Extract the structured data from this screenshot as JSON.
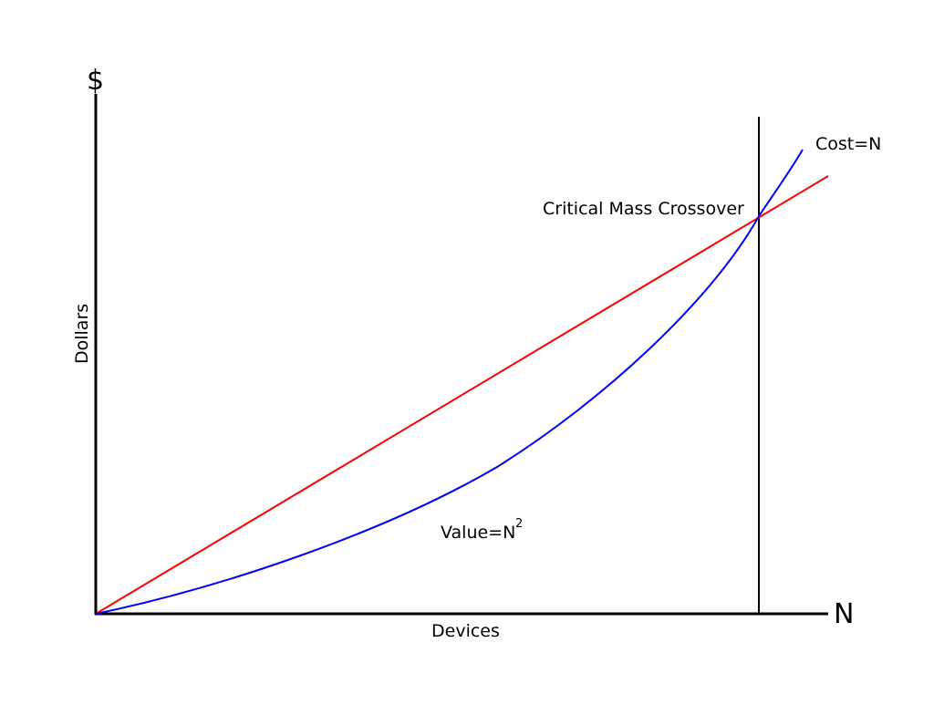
{
  "diagram": {
    "y_axis_symbol": "$",
    "x_axis_symbol": "N",
    "y_axis_label": "Dollars",
    "x_axis_label": "Devices",
    "crossover_label": "Critical Mass Crossover",
    "cost_label": "Cost=N",
    "value_label_base": "Value=N",
    "value_label_exponent": "2",
    "colors": {
      "axes": "#000000",
      "cost_line": "#ff0000",
      "value_curve": "#0000ff",
      "crossover_marker": "#000000"
    }
  }
}
